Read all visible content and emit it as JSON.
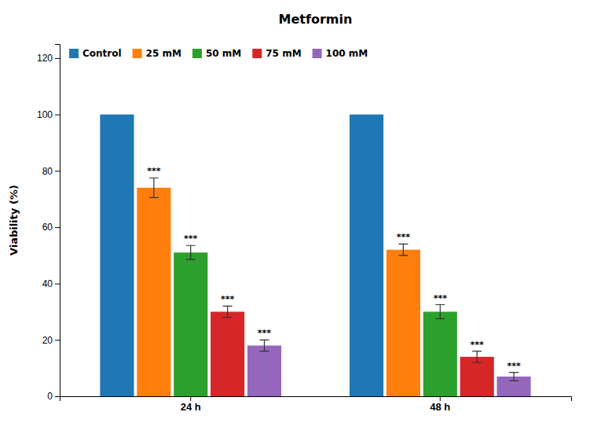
{
  "chart_data": {
    "type": "bar",
    "title": "Metformin",
    "ylabel": "Viability (%)",
    "categories": [
      "24 h",
      "48 h"
    ],
    "series": [
      {
        "name": "Control",
        "values": [
          100,
          100
        ],
        "errors": [
          0,
          0
        ],
        "annotations": [
          null,
          null
        ]
      },
      {
        "name": "25 mM",
        "values": [
          74,
          52
        ],
        "errors": [
          3.5,
          2.0
        ],
        "annotations": [
          "***",
          "***"
        ]
      },
      {
        "name": "50 mM",
        "values": [
          51,
          30
        ],
        "errors": [
          2.5,
          2.5
        ],
        "annotations": [
          "***",
          "***"
        ]
      },
      {
        "name": "75 mM",
        "values": [
          30,
          14
        ],
        "errors": [
          2.0,
          2.0
        ],
        "annotations": [
          "***",
          "***"
        ]
      },
      {
        "name": "100 mM",
        "values": [
          18,
          7
        ],
        "errors": [
          2.0,
          1.5
        ],
        "annotations": [
          "***",
          "***"
        ]
      }
    ],
    "ylim": [
      0,
      125
    ],
    "yticks": [
      0,
      20,
      40,
      60,
      80,
      100,
      120
    ],
    "grid": false,
    "legend": "upper left"
  }
}
